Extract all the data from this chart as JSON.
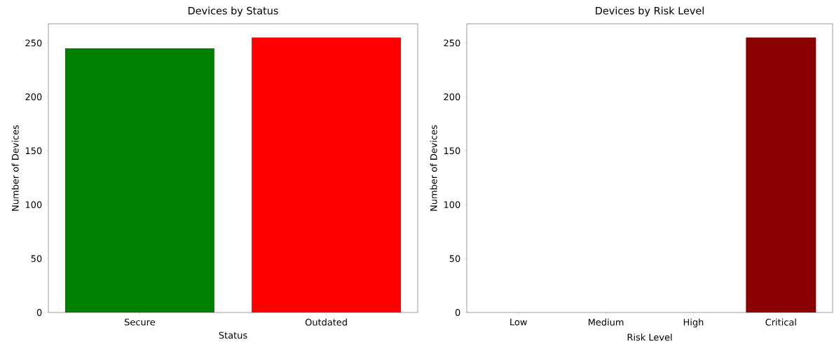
{
  "chart_data": [
    {
      "type": "bar",
      "title": "Devices by Status",
      "xlabel": "Status",
      "ylabel": "Number of Devices",
      "categories": [
        "Secure",
        "Outdated"
      ],
      "values": [
        245,
        255
      ],
      "colors": [
        "#008000",
        "#ff0000"
      ],
      "ylim": [
        0,
        267.75
      ],
      "yticks": [
        0,
        50,
        100,
        150,
        200,
        250
      ]
    },
    {
      "type": "bar",
      "title": "Devices by Risk Level",
      "xlabel": "Risk Level",
      "ylabel": "Number of Devices",
      "categories": [
        "Low",
        "Medium",
        "High",
        "Critical"
      ],
      "values": [
        0,
        0,
        0,
        255
      ],
      "colors": [
        null,
        null,
        null,
        "#8b0000"
      ],
      "ylim": [
        0,
        267.75
      ],
      "yticks": [
        0,
        50,
        100,
        150,
        200,
        250
      ]
    }
  ]
}
